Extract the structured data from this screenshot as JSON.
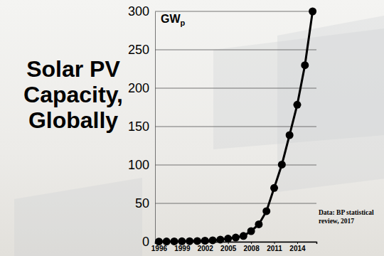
{
  "chart_data": {
    "type": "line",
    "title": "Solar PV Capacity, Globally",
    "y_label": "GWp",
    "annotations": [
      "Data: BP statistical review, 2017"
    ],
    "x": [
      1996,
      1997,
      1998,
      1999,
      2000,
      2001,
      2002,
      2003,
      2004,
      2005,
      2006,
      2007,
      2008,
      2009,
      2010,
      2011,
      2012,
      2013,
      2014,
      2015,
      2016
    ],
    "values": [
      0.3,
      0.4,
      0.5,
      0.6,
      0.8,
      1.0,
      1.4,
      1.9,
      2.8,
      4.1,
      5.5,
      7.6,
      13.9,
      22.7,
      39.9,
      70.1,
      100.5,
      138.9,
      178.4,
      229.9,
      300
    ],
    "color": "#000000",
    "marker": "circle",
    "line_style": "solid",
    "xlim": [
      1995.5,
      2016.5
    ],
    "xticks": [
      1996,
      1999,
      2002,
      2005,
      2008,
      2011,
      2014
    ],
    "ylim": [
      0,
      300
    ],
    "yticks": [
      0,
      50,
      100,
      150,
      200,
      250,
      300
    ],
    "grid": true
  }
}
